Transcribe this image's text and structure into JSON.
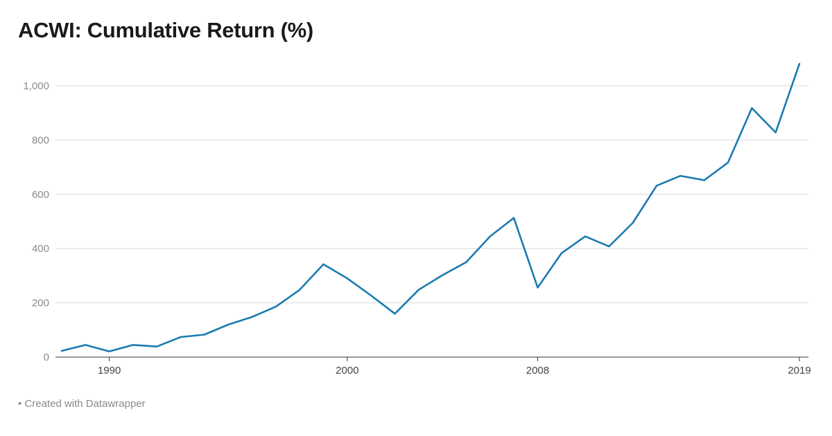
{
  "chart_data": {
    "type": "line",
    "title": "ACWI: Cumulative Return (%)",
    "xlabel": "",
    "ylabel": "",
    "x": [
      1988,
      1989,
      1990,
      1991,
      1992,
      1993,
      1994,
      1995,
      1996,
      1997,
      1998,
      1999,
      2000,
      2001,
      2002,
      2003,
      2004,
      2005,
      2006,
      2007,
      2008,
      2009,
      2010,
      2011,
      2012,
      2013,
      2014,
      2015,
      2016,
      2017,
      2018,
      2019
    ],
    "series": [
      {
        "values": [
          23,
          45,
          21,
          45,
          39,
          74,
          83,
          120,
          148,
          186,
          248,
          342,
          290,
          227,
          160,
          248,
          302,
          350,
          445,
          513,
          256,
          383,
          445,
          408,
          495,
          632,
          668,
          652,
          717,
          918,
          828,
          1081
        ]
      }
    ],
    "xlim": [
      1988,
      2019
    ],
    "ylim": [
      0,
      1100
    ],
    "y_ticks": [
      0,
      200,
      400,
      600,
      800,
      1000
    ],
    "y_tick_labels": [
      "0",
      "200",
      "400",
      "600",
      "800",
      "1,000"
    ],
    "x_ticks": [
      1990,
      2000,
      2008,
      2019
    ],
    "x_tick_labels": [
      "1990",
      "2000",
      "2008",
      "2019"
    ],
    "grid": true,
    "line_color": "#1a7ab0",
    "grid_color": "#d9d9d9"
  },
  "footer": "• Created with Datawrapper"
}
